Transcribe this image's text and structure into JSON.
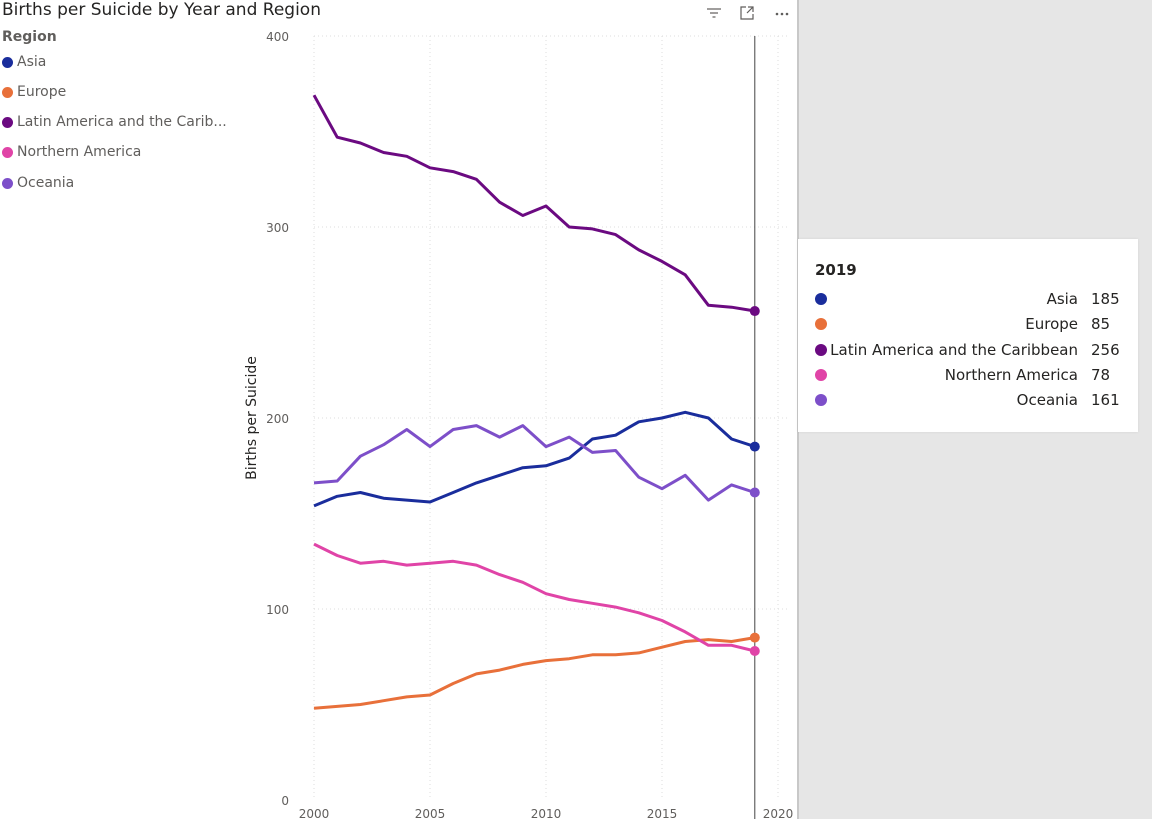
{
  "chart_data": {
    "type": "line",
    "title": "Births per Suicide by Year and Region",
    "xlabel": "",
    "ylabel": "Births per Suicide",
    "xlim": [
      2000,
      2020.5
    ],
    "ylim": [
      0,
      400
    ],
    "x_ticks": [
      2000,
      2005,
      2010,
      2015,
      2020
    ],
    "y_ticks": [
      0,
      100,
      200,
      300,
      400
    ],
    "grid": true,
    "legend_title": "Region",
    "legend_position": "left",
    "x": [
      2000,
      2001,
      2002,
      2003,
      2004,
      2005,
      2006,
      2007,
      2008,
      2009,
      2010,
      2011,
      2012,
      2013,
      2014,
      2015,
      2016,
      2017,
      2018,
      2019
    ],
    "series": [
      {
        "name": "Asia",
        "legend_label": "Asia",
        "color": "#1a2d9c",
        "values": [
          154,
          159,
          161,
          158,
          157,
          156,
          161,
          166,
          170,
          174,
          175,
          179,
          189,
          191,
          198,
          200,
          203,
          200,
          189,
          185
        ]
      },
      {
        "name": "Europe",
        "legend_label": "Europe",
        "color": "#e8703a",
        "values": [
          48,
          49,
          50,
          52,
          54,
          55,
          61,
          66,
          68,
          71,
          73,
          74,
          76,
          76,
          77,
          80,
          83,
          84,
          83,
          85
        ]
      },
      {
        "name": "Latin America and the Caribbean",
        "legend_label": "Latin America and the Carib...",
        "color": "#6b0a81",
        "values": [
          369,
          347,
          344,
          339,
          337,
          331,
          329,
          325,
          313,
          306,
          311,
          300,
          299,
          296,
          288,
          282,
          275,
          259,
          258,
          256
        ]
      },
      {
        "name": "Northern America",
        "legend_label": "Northern America",
        "color": "#e044a7",
        "values": [
          134,
          128,
          124,
          125,
          123,
          124,
          125,
          123,
          118,
          114,
          108,
          105,
          103,
          101,
          98,
          94,
          88,
          81,
          81,
          78
        ]
      },
      {
        "name": "Oceania",
        "legend_label": "Oceania",
        "color": "#7d4fc9",
        "values": [
          166,
          167,
          180,
          186,
          194,
          185,
          194,
          196,
          190,
          196,
          185,
          190,
          182,
          183,
          169,
          163,
          170,
          157,
          165,
          161
        ]
      }
    ],
    "highlight_x": 2019
  },
  "tooltip": {
    "title": "2019",
    "rows": [
      {
        "label": "Asia",
        "value": "185",
        "color": "#1a2d9c"
      },
      {
        "label": "Europe",
        "value": "85",
        "color": "#e8703a"
      },
      {
        "label": "Latin America and the Caribbean",
        "value": "256",
        "color": "#6b0a81"
      },
      {
        "label": "Northern America",
        "value": "78",
        "color": "#e044a7"
      },
      {
        "label": "Oceania",
        "value": "161",
        "color": "#7d4fc9"
      }
    ]
  },
  "header_icons": [
    "filter-icon",
    "focus-mode-icon",
    "more-options-icon"
  ],
  "colors": {
    "gridline": "#dddddd",
    "axis_text": "#605e5c",
    "hover_line": "#444444"
  }
}
